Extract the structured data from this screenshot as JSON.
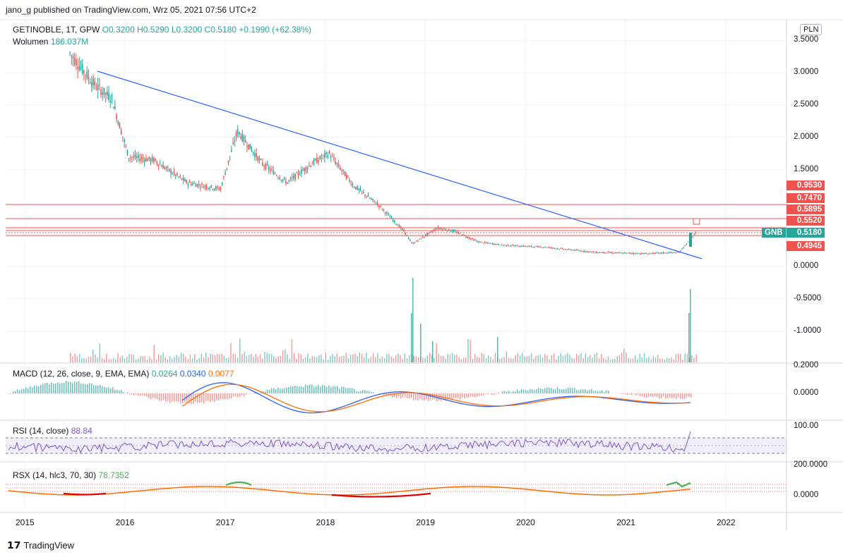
{
  "header": {
    "published": "jano_g published on TradingView.com, Wrz 05, 2021 07:56 UTC+2"
  },
  "main_legend": {
    "symbol": "GETINOBLE, 1T, GPW",
    "o": "O0.3200",
    "h": "H0.5290",
    "l": "L0.3200",
    "c": "C0.5180",
    "change": "+0.1990 (+62.38%)",
    "volume_label": "Wolumen",
    "volume_value": "186.037M"
  },
  "currency": "PLN",
  "price_axis": [
    "3.5000",
    "3.0000",
    "2.5000",
    "2.0000",
    "1.5000",
    "0.0000",
    "-0.5000",
    "-1.0000"
  ],
  "price_badges": [
    {
      "text": "0.9530",
      "color": "#ef5350"
    },
    {
      "text": "0.7470",
      "color": "#ef5350"
    },
    {
      "text": "0.5895",
      "color": "#ef5350"
    },
    {
      "text": "0.5520",
      "color": "#ef5350"
    },
    {
      "text": "0.5180",
      "color": "#26a69a"
    },
    {
      "text": "0.4945",
      "color": "#ef5350"
    }
  ],
  "symbol_tag": "GNB",
  "macd": {
    "label": "MACD (12, 26, close, 9, EMA, EMA)",
    "v1": "0.0264",
    "v2": "0.0340",
    "v3": "0.0077",
    "axis": [
      "0.2000",
      "0.0000"
    ]
  },
  "rsi": {
    "label": "RSI (14, close)",
    "value": "88.84",
    "axis": [
      "100.00"
    ]
  },
  "rsx": {
    "label": "RSX (14, hlc3, 70, 30)",
    "value": "78.7352",
    "axis": [
      "200.0000",
      "0.0000"
    ]
  },
  "x_axis": [
    "2015",
    "2016",
    "2017",
    "2018",
    "2019",
    "2020",
    "2021",
    "2022"
  ],
  "footer": "TradingView",
  "colors": {
    "up": "#26a69a",
    "down": "#ef5350",
    "trend": "#2962ff",
    "macd": "#2962ff",
    "signal": "#ff6d00",
    "rsi": "#7e57c2",
    "rsx_up": "#4caf50",
    "rsx_down": "#e00000"
  },
  "chart_data": {
    "type": "line",
    "x": [
      "2015-06",
      "2015-09",
      "2015-11",
      "2016-01",
      "2016-04",
      "2016-08",
      "2016-12",
      "2017-02",
      "2017-05",
      "2017-08",
      "2017-11",
      "2018-01",
      "2018-04",
      "2018-07",
      "2018-10",
      "2018-11",
      "2019-02",
      "2019-04",
      "2019-07",
      "2019-10",
      "2020-03",
      "2020-09",
      "2021-03",
      "2021-07",
      "2021-09"
    ],
    "series": [
      {
        "values": [
          3.3,
          2.8,
          2.6,
          1.7,
          1.65,
          1.3,
          1.2,
          2.1,
          1.6,
          1.3,
          1.6,
          1.75,
          1.25,
          0.95,
          0.55,
          0.35,
          0.6,
          0.55,
          0.38,
          0.33,
          0.3,
          0.22,
          0.2,
          0.22,
          0.52
        ]
      }
    ],
    "ylim": [
      -1.5,
      3.7
    ]
  }
}
